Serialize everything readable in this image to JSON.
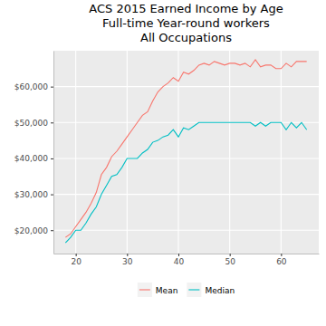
{
  "chart_data": {
    "type": "line",
    "title": "ACS 2015 Earned Income by Age\nFull-time Year-round workers\nAll Occupations",
    "x": [
      18,
      19,
      20,
      21,
      22,
      23,
      24,
      25,
      26,
      27,
      28,
      29,
      30,
      31,
      32,
      33,
      34,
      35,
      36,
      37,
      38,
      39,
      40,
      41,
      42,
      43,
      44,
      45,
      46,
      47,
      48,
      49,
      50,
      51,
      52,
      53,
      54,
      55,
      56,
      57,
      58,
      59,
      60,
      61,
      62,
      63,
      64,
      65
    ],
    "series": [
      {
        "name": "Mean",
        "color": "#F8766D",
        "values": [
          18000,
          19000,
          21000,
          23000,
          25000,
          27500,
          30500,
          35500,
          37500,
          40500,
          42000,
          44000,
          46000,
          48000,
          50000,
          52000,
          53000,
          56000,
          58500,
          60000,
          61000,
          62500,
          61500,
          64000,
          63500,
          64500,
          66000,
          66500,
          66000,
          67000,
          66500,
          66000,
          66500,
          66500,
          66000,
          66500,
          65500,
          67500,
          65500,
          66000,
          66000,
          65000,
          65000,
          66500,
          65500,
          67000,
          67000,
          67000
        ]
      },
      {
        "name": "Median",
        "color": "#00BFC4",
        "values": [
          16500,
          18000,
          20000,
          20000,
          22000,
          24500,
          26500,
          30000,
          32500,
          35000,
          35500,
          37500,
          40000,
          40000,
          40000,
          41500,
          42500,
          44500,
          45000,
          46000,
          46500,
          48000,
          46000,
          48500,
          48000,
          49000,
          50000,
          50000,
          50000,
          50000,
          50000,
          50000,
          50000,
          50000,
          50000,
          50000,
          50000,
          49000,
          50000,
          49000,
          50000,
          50000,
          50000,
          48000,
          50000,
          48500,
          50000,
          48000
        ]
      }
    ],
    "xlim": [
      15.65,
      67.35
    ],
    "xticks": [
      20,
      30,
      40,
      50,
      60
    ],
    "ylim": [
      13500,
      70000
    ],
    "yticks": [
      {
        "value": 20000,
        "label": "$20,000"
      },
      {
        "value": 30000,
        "label": "$30,000"
      },
      {
        "value": 40000,
        "label": "$40,000"
      },
      {
        "value": 50000,
        "label": "$50,000"
      },
      {
        "value": 60000,
        "label": "$60,000"
      }
    ],
    "grid": true,
    "legend": "bottom"
  }
}
